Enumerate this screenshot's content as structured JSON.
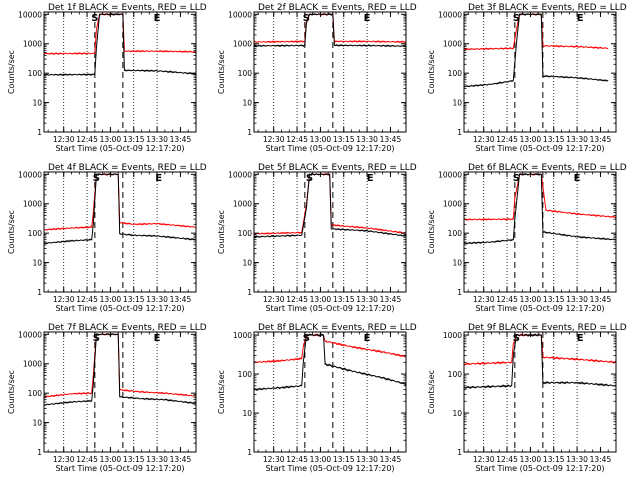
{
  "figure": {
    "xlabel": "Start Time (05-Oct-09 12:17:20)",
    "ylabel": "Counts/sec",
    "x_range": [
      "12:17:20",
      "13:55:00"
    ],
    "x_ticks": [
      "12:30",
      "12:45",
      "13:00",
      "13:15",
      "13:30",
      "13:45"
    ],
    "y_ticks": [
      "1",
      "10",
      "100",
      "1000",
      "10000"
    ],
    "y_scale": "log",
    "series_colors": {
      "events": "#000000",
      "lld": "#ff0000"
    },
    "dotted_lines": [
      "12:30",
      "12:45",
      "13:15",
      "13:30"
    ],
    "dashed_lines": [
      "12:50",
      "13:08"
    ],
    "markers": {
      "start": "S",
      "end": "E"
    }
  },
  "chart_data": [
    {
      "type": "line",
      "title": "Det 1f BLACK = Events, RED = LLD",
      "marker_x": {
        "S": "12:50",
        "E": "13:30"
      },
      "ylim": [
        1,
        12000
      ],
      "series": [
        {
          "x": [
            "12:17:20",
            "12:50",
            "12:51",
            "12:53",
            "13:08",
            "13:09",
            "13:30",
            "13:55"
          ],
          "values": [
            88,
            90,
            700,
            10000,
            10000,
            125,
            120,
            95
          ]
        },
        {
          "x": [
            "12:17:20",
            "12:50",
            "12:51",
            "12:53",
            "13:08",
            "13:09",
            "13:30",
            "13:55"
          ],
          "values": [
            460,
            470,
            3000,
            10000,
            10000,
            560,
            560,
            530
          ]
        }
      ]
    },
    {
      "type": "line",
      "title": "Det 2f BLACK = Events, RED = LLD",
      "marker_x": {
        "S": "12:51",
        "E": "13:30"
      },
      "ylim": [
        1,
        12000
      ],
      "series": [
        {
          "x": [
            "12:17:20",
            "12:50",
            "12:51",
            "12:53",
            "13:08",
            "13:09",
            "13:30",
            "13:55"
          ],
          "values": [
            850,
            870,
            5000,
            10000,
            10000,
            880,
            870,
            830
          ]
        },
        {
          "x": [
            "12:17:20",
            "12:50",
            "12:51",
            "12:53",
            "13:08",
            "13:09",
            "13:30",
            "13:55"
          ],
          "values": [
            1150,
            1200,
            6000,
            10000,
            10000,
            1200,
            1200,
            1150
          ]
        }
      ]
    },
    {
      "type": "line",
      "title": "Det 3f BLACK = Events, RED = LLD",
      "marker_x": {
        "S": "12:51",
        "E": "13:32"
      },
      "ylim": [
        1,
        12000
      ],
      "series": [
        {
          "x": [
            "12:17:20",
            "12:35",
            "12:49",
            "12:51",
            "12:53",
            "13:07",
            "13:08",
            "13:30",
            "13:50"
          ],
          "values": [
            35,
            42,
            55,
            1000,
            10000,
            10000,
            80,
            70,
            55
          ]
        },
        {
          "x": [
            "12:17:20",
            "12:49",
            "12:51",
            "12:53",
            "13:07",
            "13:08",
            "13:30",
            "13:50"
          ],
          "values": [
            650,
            700,
            3000,
            10000,
            10000,
            850,
            800,
            700
          ]
        }
      ]
    },
    {
      "type": "line",
      "title": "Det 4f BLACK = Events, RED = LLD",
      "marker_x": {
        "S": "12:51",
        "E": "13:31"
      },
      "ylim": [
        1,
        12000
      ],
      "series": [
        {
          "x": [
            "12:17:20",
            "12:35",
            "12:48",
            "12:49",
            "12:51",
            "13:05",
            "13:06",
            "13:15",
            "13:30",
            "13:55"
          ],
          "values": [
            45,
            55,
            60,
            200,
            10000,
            10000,
            95,
            85,
            80,
            60
          ]
        },
        {
          "x": [
            "12:17:20",
            "12:35",
            "12:48",
            "12:49",
            "12:51",
            "13:05",
            "13:06",
            "13:15",
            "13:30",
            "13:55"
          ],
          "values": [
            130,
            150,
            160,
            500,
            10000,
            10000,
            230,
            200,
            210,
            160
          ]
        }
      ]
    },
    {
      "type": "line",
      "title": "Det 5f BLACK = Events, RED = LLD",
      "marker_x": {
        "S": "12:53",
        "E": "13:32"
      },
      "ylim": [
        1,
        12000
      ],
      "series": [
        {
          "x": [
            "12:17:20",
            "12:48",
            "12:51",
            "12:53",
            "13:06",
            "13:07",
            "13:30",
            "13:55"
          ],
          "values": [
            75,
            85,
            700,
            10000,
            10000,
            140,
            120,
            80
          ]
        },
        {
          "x": [
            "12:17:20",
            "12:48",
            "12:51",
            "12:53",
            "13:06",
            "13:07",
            "13:30",
            "13:55"
          ],
          "values": [
            95,
            105,
            900,
            10000,
            10000,
            190,
            150,
            100
          ]
        }
      ]
    },
    {
      "type": "line",
      "title": "Det 6f BLACK = Events, RED = LLD",
      "marker_x": {
        "S": "12:51",
        "E": "13:30"
      },
      "ylim": [
        1,
        12000
      ],
      "series": [
        {
          "x": [
            "12:17:20",
            "12:35",
            "12:49",
            "12:50",
            "12:53",
            "13:07",
            "13:08",
            "13:30",
            "13:55"
          ],
          "values": [
            45,
            50,
            60,
            300,
            10000,
            10000,
            110,
            75,
            60
          ]
        },
        {
          "x": [
            "12:17:20",
            "12:49",
            "12:50",
            "12:53",
            "13:07",
            "13:10",
            "13:30",
            "13:55"
          ],
          "values": [
            290,
            300,
            1500,
            10000,
            10000,
            600,
            450,
            350
          ]
        }
      ]
    },
    {
      "type": "line",
      "title": "Det 7f BLACK = Events, RED = LLD",
      "marker_x": {
        "S": "12:51",
        "E": "13:30"
      },
      "ylim": [
        1,
        12000
      ],
      "series": [
        {
          "x": [
            "12:17:20",
            "12:35",
            "12:48",
            "12:49",
            "12:51",
            "13:05",
            "13:06",
            "13:20",
            "13:35",
            "13:55"
          ],
          "values": [
            40,
            50,
            55,
            200,
            10000,
            10000,
            75,
            65,
            60,
            45
          ]
        },
        {
          "x": [
            "12:17:20",
            "12:35",
            "12:48",
            "12:49",
            "12:51",
            "13:05",
            "13:06",
            "13:20",
            "13:35",
            "13:55"
          ],
          "values": [
            75,
            95,
            100,
            400,
            10000,
            10000,
            130,
            110,
            100,
            80
          ]
        }
      ]
    },
    {
      "type": "line",
      "title": "Det 8f BLACK = Events, RED = LLD",
      "marker_x": {
        "S": "12:51",
        "E": "13:30"
      },
      "ylim": [
        1,
        1200
      ],
      "series": [
        {
          "x": [
            "12:17:20",
            "12:35",
            "12:48",
            "12:49",
            "12:51",
            "12:55",
            "13:02",
            "13:03",
            "13:20",
            "13:40",
            "13:55"
          ],
          "values": [
            40,
            45,
            50,
            200,
            1000,
            1000,
            1000,
            180,
            120,
            80,
            55
          ]
        },
        {
          "x": [
            "12:17:20",
            "12:35",
            "12:48",
            "12:49",
            "12:51",
            "12:55",
            "13:02",
            "13:03",
            "13:20",
            "13:40",
            "13:55"
          ],
          "values": [
            200,
            220,
            250,
            500,
            1000,
            1000,
            1000,
            700,
            500,
            370,
            280
          ]
        }
      ]
    },
    {
      "type": "line",
      "title": "Det 9f BLACK = Events, RED = LLD",
      "marker_x": {
        "S": "12:51",
        "E": "13:32"
      },
      "ylim": [
        1,
        1200
      ],
      "series": [
        {
          "x": [
            "12:17:20",
            "12:48",
            "12:49",
            "12:51",
            "13:07",
            "13:08",
            "13:30",
            "13:55"
          ],
          "values": [
            45,
            50,
            300,
            1000,
            1000,
            60,
            60,
            50
          ]
        },
        {
          "x": [
            "12:17:20",
            "12:48",
            "12:49",
            "12:51",
            "13:07",
            "13:08",
            "13:30",
            "13:55"
          ],
          "values": [
            180,
            200,
            600,
            1000,
            1000,
            270,
            240,
            200
          ]
        }
      ]
    }
  ]
}
